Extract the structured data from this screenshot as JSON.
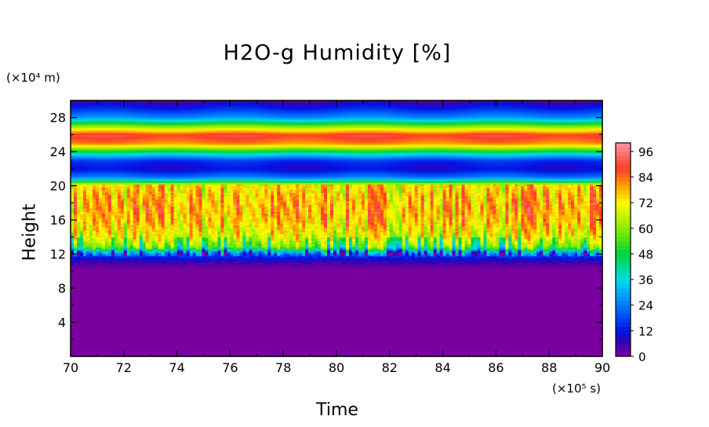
{
  "chart_data": {
    "type": "heatmap",
    "title": "H2O-g Humidity [%]",
    "xlabel": "Time",
    "ylabel": "Height",
    "x_unit_label": "(×10⁵ s)",
    "y_unit_label": "(×10⁴ m)",
    "xlim": [
      70,
      90
    ],
    "ylim": [
      0,
      30
    ],
    "x_ticks": [
      70,
      72,
      74,
      76,
      78,
      80,
      82,
      84,
      86,
      88,
      90
    ],
    "y_ticks": [
      4,
      8,
      12,
      16,
      20,
      24,
      28
    ],
    "colorbar": {
      "range": [
        0,
        100
      ],
      "tick_labels": [
        0,
        12,
        24,
        36,
        48,
        60,
        72,
        84,
        96
      ]
    },
    "mean_profile": {
      "height": [
        0,
        10.2,
        11.0,
        11.6,
        12.2,
        12.8,
        14.0,
        16.0,
        17.5,
        19.0,
        20.1,
        20.6,
        21.0,
        22.0,
        23.0,
        24.0,
        25.0,
        26.0,
        27.0,
        28.0,
        29.0,
        30.0
      ],
      "humidity": [
        0,
        0,
        5,
        12,
        25,
        55,
        68,
        76,
        78,
        76,
        72,
        45,
        25,
        10,
        15,
        45,
        82,
        90,
        60,
        28,
        15,
        5
      ]
    }
  }
}
